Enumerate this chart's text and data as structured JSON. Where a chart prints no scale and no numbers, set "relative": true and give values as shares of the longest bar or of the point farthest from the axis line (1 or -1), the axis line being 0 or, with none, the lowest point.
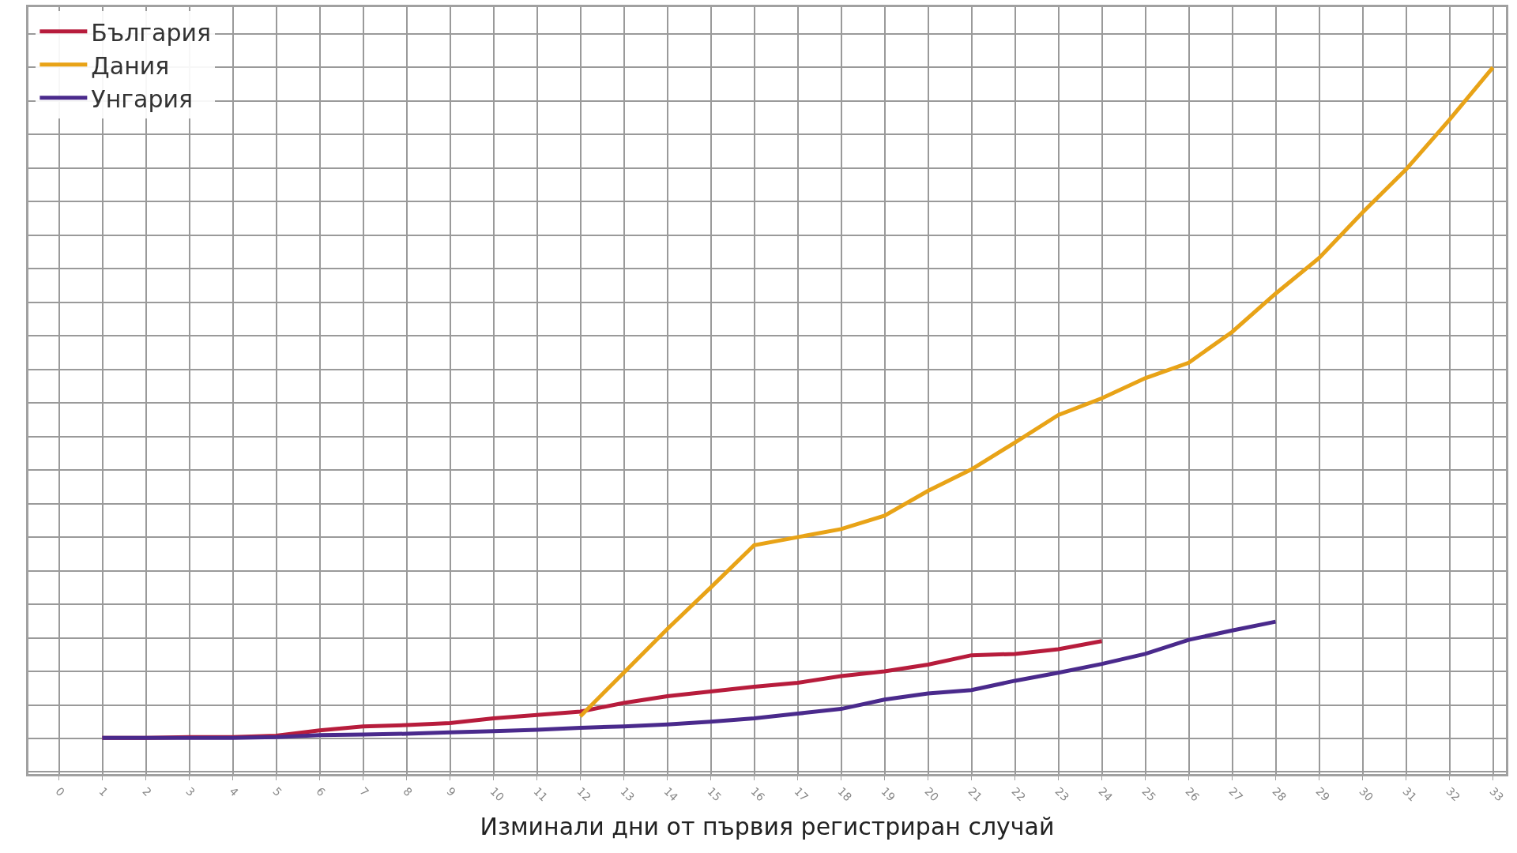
{
  "chart_data": {
    "type": "line",
    "xlabel": "Изминали дни от първия регистриран случай",
    "x": [
      1,
      2,
      3,
      4,
      5,
      6,
      7,
      8,
      9,
      10,
      11,
      12,
      13,
      14,
      15,
      16,
      17,
      18,
      19,
      20,
      21,
      22,
      23,
      24,
      25,
      26,
      27,
      28,
      29,
      30,
      31,
      32,
      33
    ],
    "series": [
      {
        "name": "България",
        "color": "#b71c3c",
        "values": [
          0.001,
          0.001,
          0.002,
          0.002,
          0.004,
          0.012,
          0.018,
          0.02,
          0.023,
          0.03,
          0.035,
          0.04,
          0.053,
          0.063,
          0.07,
          0.077,
          0.083,
          0.093,
          0.1,
          0.11,
          0.124,
          0.126,
          0.133,
          0.145,
          null,
          null,
          null,
          null,
          null,
          null,
          null,
          null,
          null
        ]
      },
      {
        "name": "Дания",
        "color": "#e8a317",
        "values": [
          null,
          null,
          null,
          null,
          null,
          null,
          null,
          null,
          null,
          null,
          null,
          0.033,
          0.098,
          0.163,
          0.225,
          0.288,
          0.3,
          0.312,
          0.332,
          0.369,
          0.401,
          0.441,
          0.482,
          0.507,
          0.537,
          0.56,
          0.606,
          0.663,
          0.716,
          0.784,
          0.848,
          0.922,
          1
        ]
      },
      {
        "name": "Унгария",
        "color": "#4a2a8c",
        "values": [
          0.001,
          0.001,
          0.001,
          0.001,
          0.002,
          0.005,
          0.006,
          0.007,
          0.009,
          0.011,
          0.013,
          0.016,
          0.018,
          0.021,
          0.025,
          0.03,
          0.037,
          0.044,
          0.058,
          0.067,
          0.072,
          0.086,
          0.098,
          0.111,
          0.126,
          0.147,
          0.161,
          0.174,
          null,
          null,
          null,
          null,
          null
        ]
      }
    ],
    "relative": true,
    "xlim": [
      -0.7,
      33.3
    ],
    "xticks": [
      0,
      1,
      2,
      3,
      4,
      5,
      6,
      7,
      8,
      9,
      10,
      11,
      12,
      13,
      14,
      15,
      16,
      17,
      18,
      19,
      20,
      21,
      22,
      23,
      24,
      25,
      26,
      27,
      28,
      29,
      30,
      31,
      32,
      33
    ],
    "grid": true,
    "legend": "top left",
    "marker": "none",
    "line_style": "solid"
  }
}
